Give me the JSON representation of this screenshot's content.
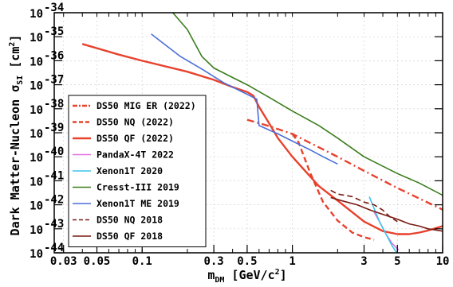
{
  "chart_data": {
    "type": "line",
    "title": "",
    "xlabel": "m_DM [GeV/c^2]",
    "ylabel": "Dark Matter-Nucleon σ_SI [cm^2]",
    "xscale": "log",
    "yscale": "log",
    "xlim": [
      0.026,
      10
    ],
    "ylim": [
      1e-44,
      1e-34
    ],
    "grid": true,
    "legend_position": "bottom-left",
    "x_tick_labels": [
      "0.03",
      "0.05",
      "0.1",
      "0.3",
      "0.5",
      "1",
      "3",
      "5",
      "10"
    ],
    "x_tick_values": [
      0.03,
      0.05,
      0.1,
      0.3,
      0.5,
      1,
      3,
      5,
      10
    ],
    "y_tick_exponents": [
      -44,
      -43,
      -42,
      -41,
      -40,
      -39,
      -38,
      -37,
      -36,
      -35,
      -34
    ],
    "y_tick_base": "10",
    "series": [
      {
        "name": "DS50 MIG ER (2022)",
        "color": "#e8412c",
        "dash": "dashdot",
        "x": [
          0.5,
          0.7,
          1,
          2,
          3,
          5,
          10
        ],
        "y": [
          3.5e-39,
          1.9e-39,
          8.9e-40,
          1e-40,
          2.6e-41,
          5e-42,
          6.3e-43
        ]
      },
      {
        "name": "DS50 NQ (2022)",
        "color": "#e8412c",
        "dash": "dashed",
        "x": [
          1.0,
          1.1,
          1.3,
          1.6,
          2,
          2.5,
          3,
          3.5
        ],
        "y": [
          8.9e-40,
          4e-40,
          2.5e-41,
          1.3e-42,
          2.2e-43,
          7e-44,
          4.5e-44,
          3.5e-44
        ]
      },
      {
        "name": "DS50 QF (2022)",
        "color": "#e8412c",
        "dash": "solid",
        "x": [
          0.04,
          0.07,
          0.1,
          0.2,
          0.3,
          0.4,
          0.5,
          0.55,
          0.6,
          0.7,
          0.8,
          1,
          1.5,
          2,
          3,
          4,
          5,
          6,
          7,
          8,
          10
        ],
        "y": [
          5e-36,
          1.8e-36,
          1e-36,
          3.5e-37,
          1.6e-37,
          8e-38,
          5e-38,
          3.5e-38,
          1.2e-38,
          2.5e-39,
          6e-40,
          1e-40,
          6e-42,
          1.5e-42,
          2e-43,
          8e-44,
          6e-44,
          6e-44,
          7e-44,
          8.5e-44,
          1.3e-43
        ]
      },
      {
        "name": "PandaX-4T 2022",
        "color": "#e070e0",
        "dash": "solid",
        "x": [
          3.5,
          3.8,
          4.2,
          4.6,
          5.1
        ],
        "y": [
          5e-43,
          2e-43,
          6e-44,
          2.5e-44,
          1.3e-44
        ]
      },
      {
        "name": "Xenon1T 2020",
        "color": "#3ec4e8",
        "dash": "solid",
        "x": [
          3.25,
          3.5,
          3.8,
          4.2,
          4.6,
          5.0
        ],
        "y": [
          2.2e-42,
          7e-43,
          2e-43,
          6e-44,
          2e-44,
          9e-45
        ]
      },
      {
        "name": "Cresst-III 2019",
        "color": "#3a7d1e",
        "dash": "solid",
        "x": [
          0.16,
          0.2,
          0.25,
          0.3,
          0.4,
          0.5,
          0.7,
          1,
          1.5,
          2,
          3,
          5,
          7,
          10
        ],
        "y": [
          1e-34,
          2e-35,
          1.5e-36,
          5e-37,
          2e-37,
          1e-37,
          3e-38,
          8e-39,
          2e-39,
          6e-40,
          1e-40,
          2e-41,
          8e-42,
          2.5e-42
        ]
      },
      {
        "name": "Xenon1T ME 2019",
        "color": "#4a6fd8",
        "dash": "solid",
        "x": [
          0.115,
          0.14,
          0.18,
          0.25,
          0.35,
          0.5,
          0.58,
          0.6,
          0.8,
          1,
          1.3,
          1.6,
          2
        ],
        "y": [
          1.3e-35,
          5e-36,
          1.5e-36,
          4.5e-37,
          1.2e-37,
          4e-38,
          2.5e-38,
          2e-39,
          9e-40,
          4.5e-40,
          2e-40,
          1e-40,
          5e-41
        ]
      },
      {
        "name": "DS50 NQ 2018",
        "color": "#7a1a12",
        "dash": "dashed",
        "x": [
          1.8,
          2.0,
          2.5,
          3,
          3.5,
          4,
          4.5,
          5
        ],
        "y": [
          4e-42,
          2.8e-42,
          2.2e-42,
          1.3e-42,
          1e-42,
          6e-43,
          3e-43,
          2e-43
        ]
      },
      {
        "name": "DS50 QF 2018",
        "color": "#7a1a12",
        "dash": "solid",
        "x": [
          1.8,
          2.2,
          2.7,
          3.3,
          4,
          5,
          6,
          7,
          8,
          10
        ],
        "y": [
          2e-42,
          1.4e-42,
          1e-42,
          6e-43,
          4e-43,
          2.5e-43,
          1.6e-43,
          1.3e-43,
          1e-43,
          8e-44
        ]
      }
    ]
  }
}
